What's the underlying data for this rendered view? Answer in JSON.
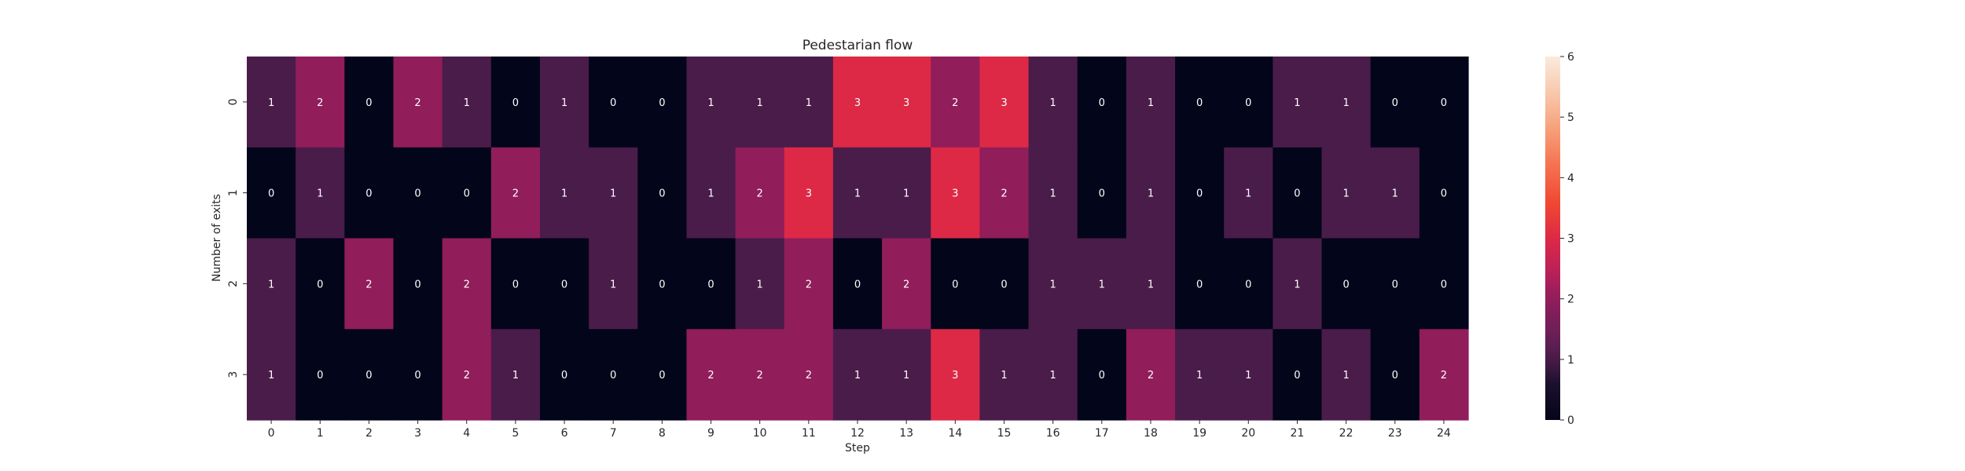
{
  "chart_data": {
    "type": "heatmap",
    "title": "Pedestarian flow",
    "xlabel": "Step",
    "ylabel": "Number of exits",
    "x_categories": [
      "0",
      "1",
      "2",
      "3",
      "4",
      "5",
      "6",
      "7",
      "8",
      "9",
      "10",
      "11",
      "12",
      "13",
      "14",
      "15",
      "16",
      "17",
      "18",
      "19",
      "20",
      "21",
      "22",
      "23",
      "24"
    ],
    "y_categories": [
      "0",
      "1",
      "2",
      "3"
    ],
    "values": [
      [
        1,
        2,
        0,
        2,
        1,
        0,
        1,
        0,
        0,
        1,
        1,
        1,
        3,
        3,
        2,
        3,
        1,
        0,
        1,
        0,
        0,
        1,
        1,
        0,
        0
      ],
      [
        0,
        1,
        0,
        0,
        0,
        2,
        1,
        1,
        0,
        1,
        2,
        3,
        1,
        1,
        3,
        2,
        1,
        0,
        1,
        0,
        1,
        0,
        1,
        1,
        0
      ],
      [
        1,
        0,
        2,
        0,
        2,
        0,
        0,
        1,
        0,
        0,
        1,
        2,
        0,
        2,
        0,
        0,
        1,
        1,
        1,
        0,
        0,
        1,
        0,
        0,
        0
      ],
      [
        1,
        0,
        0,
        0,
        2,
        1,
        0,
        0,
        0,
        2,
        2,
        2,
        1,
        1,
        3,
        1,
        1,
        0,
        2,
        1,
        1,
        0,
        1,
        0,
        2
      ]
    ],
    "colorbar": {
      "min": 0,
      "max": 6,
      "ticks": [
        "0",
        "1",
        "2",
        "3",
        "4",
        "5",
        "6"
      ]
    },
    "colormap": "rocket",
    "annotations": true,
    "grid": false,
    "legend": "colorbar-right"
  }
}
